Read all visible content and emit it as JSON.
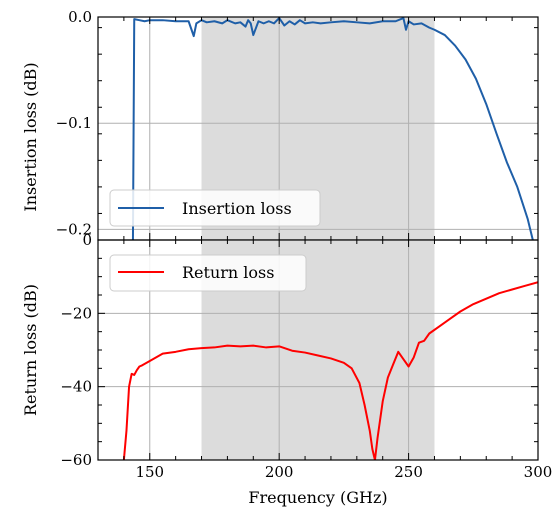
{
  "chart_data": [
    {
      "type": "line",
      "title": "",
      "ylabel": "Insertion loss (dB)",
      "xlabel": "",
      "xlim": [
        130,
        300
      ],
      "ylim": [
        -0.21,
        0.0
      ],
      "grid": true,
      "legend_position": "lower-left",
      "shaded_band": [
        170,
        260
      ],
      "yticks": [
        "0.0",
        "−0.1",
        "−0.2"
      ],
      "ytick_values": [
        0.0,
        -0.1,
        -0.2
      ],
      "series": [
        {
          "name": "Insertion loss",
          "color": "#1f5fa8",
          "x": [
            143.5,
            144,
            146,
            148,
            150,
            155,
            160,
            165,
            167,
            168,
            170,
            172,
            175,
            178,
            180,
            183,
            185,
            187,
            188,
            189,
            190,
            192,
            194,
            196,
            198,
            200,
            202,
            204,
            206,
            208,
            210,
            213,
            216,
            220,
            225,
            230,
            235,
            240,
            245,
            248,
            249,
            250,
            252,
            255,
            258,
            260,
            264,
            268,
            272,
            276,
            280,
            284,
            288,
            292,
            296,
            298
          ],
          "y": [
            -0.21,
            -0.002,
            -0.003,
            -0.004,
            -0.003,
            -0.003,
            -0.004,
            -0.004,
            -0.018,
            -0.006,
            -0.003,
            -0.005,
            -0.004,
            -0.006,
            -0.003,
            -0.006,
            -0.005,
            -0.009,
            -0.003,
            -0.006,
            -0.017,
            -0.004,
            -0.006,
            -0.004,
            -0.006,
            -0.001,
            -0.008,
            -0.004,
            -0.007,
            -0.003,
            -0.006,
            -0.005,
            -0.006,
            -0.005,
            -0.004,
            -0.005,
            -0.006,
            -0.004,
            -0.004,
            -0.001,
            -0.012,
            -0.004,
            -0.007,
            -0.006,
            -0.01,
            -0.012,
            -0.017,
            -0.027,
            -0.04,
            -0.058,
            -0.082,
            -0.11,
            -0.137,
            -0.16,
            -0.19,
            -0.21
          ]
        }
      ]
    },
    {
      "type": "line",
      "title": "",
      "ylabel": "Return loss (dB)",
      "xlabel": "Frequency (GHz)",
      "xlim": [
        130,
        300
      ],
      "ylim": [
        -60,
        0
      ],
      "grid": true,
      "legend_position": "upper-left",
      "shaded_band": [
        170,
        260
      ],
      "xticks": [
        "150",
        "200",
        "250",
        "300"
      ],
      "xtick_values": [
        150,
        200,
        250,
        300
      ],
      "yticks": [
        "0",
        "−20",
        "−40",
        "−60"
      ],
      "ytick_values": [
        0,
        -20,
        -40,
        -60
      ],
      "series": [
        {
          "name": "Return loss",
          "color": "#ff0000",
          "x": [
            140,
            141,
            142,
            143,
            144,
            145,
            146,
            147,
            150,
            155,
            160,
            165,
            170,
            175,
            180,
            185,
            190,
            195,
            200,
            205,
            210,
            215,
            220,
            225,
            228,
            231,
            233,
            235,
            236,
            237,
            238,
            240,
            242,
            244,
            246,
            248,
            250,
            252,
            254,
            256,
            258,
            262,
            266,
            270,
            275,
            280,
            285,
            290,
            295,
            300
          ],
          "y": [
            -60,
            -52,
            -40,
            -36.5,
            -36.8,
            -35.5,
            -34.5,
            -34.2,
            -33,
            -31,
            -30.5,
            -29.8,
            -29.5,
            -29.3,
            -28.8,
            -29,
            -28.8,
            -29.3,
            -29,
            -30.2,
            -30.7,
            -31.5,
            -32.3,
            -33.5,
            -35,
            -39,
            -45,
            -52,
            -57,
            -60,
            -54,
            -44,
            -37.5,
            -34,
            -30.5,
            -32.5,
            -34.5,
            -32,
            -28,
            -27.5,
            -25.5,
            -23.5,
            -21.5,
            -19.5,
            -17.5,
            -16,
            -14.5,
            -13.5,
            -12.5,
            -11.5
          ]
        }
      ]
    }
  ]
}
